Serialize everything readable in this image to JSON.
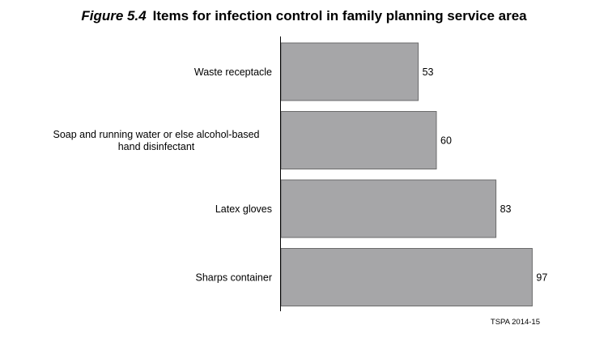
{
  "title": {
    "figure_number": "Figure 5.4",
    "text": "Items for infection control in family planning service area"
  },
  "source_note": "TSPA 2014-15",
  "chart_data": {
    "type": "bar",
    "orientation": "horizontal",
    "categories": [
      [
        "Waste receptacle"
      ],
      [
        "Soap and running water or else alcohol-based",
        "hand disinfectant"
      ],
      [
        "Latex gloves"
      ],
      [
        "Sharps container"
      ]
    ],
    "values": [
      53,
      60,
      83,
      97
    ],
    "value_labels": [
      "53",
      "60",
      "83",
      "97"
    ],
    "xlim": [
      0,
      100
    ],
    "bar_color": "#a6a6a8",
    "bar_border_color": "#6b6b6b",
    "grid": false,
    "legend": "none"
  }
}
